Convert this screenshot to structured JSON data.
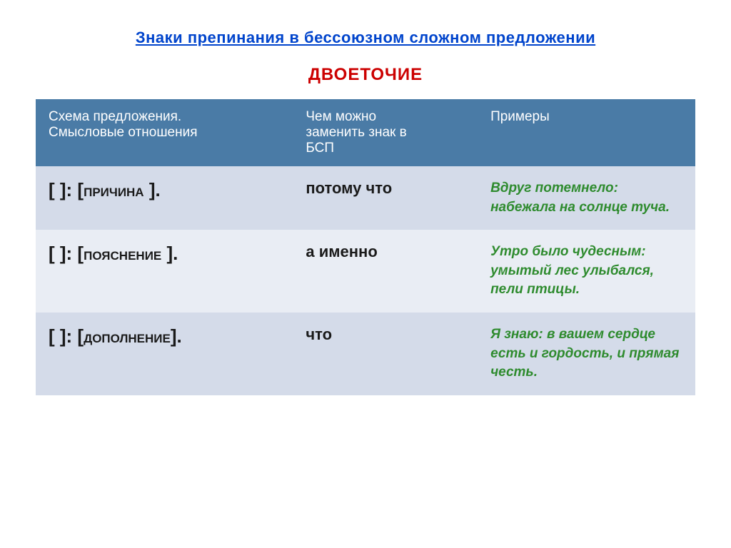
{
  "title": "Знаки препинания в бессоюзном сложном предложении",
  "subtitle": "ДВОЕТОЧИЕ",
  "headers": {
    "col1_line1": "Схема предложения.",
    "col1_line2": "Смысловые отношения",
    "col2_line1": "Чем можно",
    "col2_line2": "заменить знак в",
    "col2_line3": "БСП",
    "col3": "Примеры"
  },
  "rows": [
    {
      "schema_prefix": "[ ]: [",
      "schema_label": "причина",
      "schema_suffix": " ].",
      "replacement": "потому что",
      "example": "Вдруг потемнело: набежала на солнце туча."
    },
    {
      "schema_prefix": "[ ]: [",
      "schema_label": "пояснение",
      "schema_suffix": " ].",
      "replacement": "а именно",
      "example": "Утро было чудесным: умытый лес улыбался, пели птицы."
    },
    {
      "schema_prefix": "[ ]: [",
      "schema_label": "дополнение",
      "schema_suffix": "].",
      "replacement": "что",
      "example": "Я знаю: в вашем сердце есть и гордость, и прямая честь."
    }
  ],
  "colors": {
    "title": "#0044cc",
    "subtitle": "#cc0000",
    "header_bg": "#4a7ba6",
    "header_text": "#ffffff",
    "row_odd_bg": "#d4dbe9",
    "row_even_bg": "#e9edf4",
    "example_text": "#2e8b2e",
    "schema_text": "#1a1a1a"
  },
  "fonts": {
    "title_size": 22,
    "subtitle_size": 24,
    "header_size": 19,
    "schema_size": 26,
    "schema_label_size": 17,
    "replacement_size": 22,
    "example_size": 19
  }
}
